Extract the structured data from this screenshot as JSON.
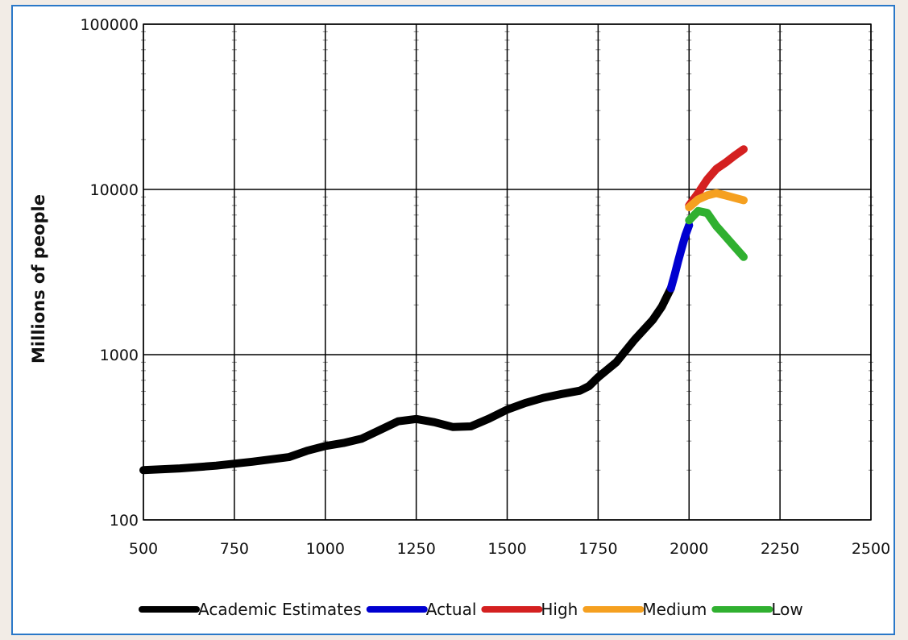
{
  "chart_data": {
    "type": "line",
    "title": "",
    "xlabel": "",
    "ylabel": "Millions of people",
    "xlim": [
      500,
      2500
    ],
    "ylim": [
      100,
      100000
    ],
    "yscale": "log",
    "grid": true,
    "legend_position": "bottom",
    "x_ticks": [
      500,
      750,
      1000,
      1250,
      1500,
      1750,
      2000,
      2250,
      2500
    ],
    "x_tick_labels": [
      "500",
      "750",
      "1000",
      "1250",
      "1500",
      "1750",
      "2000",
      "2250",
      "2500"
    ],
    "y_ticks": [
      100,
      1000,
      10000,
      100000
    ],
    "y_tick_labels": [
      "100",
      "1000",
      "10000",
      "100000"
    ],
    "series": [
      {
        "name": "Academic Estimates",
        "color": "#000000",
        "points": [
          [
            500,
            200
          ],
          [
            600,
            205
          ],
          [
            700,
            213
          ],
          [
            800,
            225
          ],
          [
            900,
            240
          ],
          [
            950,
            262
          ],
          [
            1000,
            280
          ],
          [
            1050,
            292
          ],
          [
            1100,
            310
          ],
          [
            1150,
            350
          ],
          [
            1200,
            395
          ],
          [
            1250,
            408
          ],
          [
            1300,
            390
          ],
          [
            1350,
            365
          ],
          [
            1400,
            368
          ],
          [
            1450,
            410
          ],
          [
            1500,
            465
          ],
          [
            1550,
            510
          ],
          [
            1600,
            548
          ],
          [
            1650,
            578
          ],
          [
            1700,
            605
          ],
          [
            1725,
            645
          ],
          [
            1750,
            730
          ],
          [
            1800,
            900
          ],
          [
            1850,
            1230
          ],
          [
            1900,
            1620
          ],
          [
            1925,
            1950
          ],
          [
            1950,
            2520
          ]
        ]
      },
      {
        "name": "Actual",
        "color": "#0000d0",
        "points": [
          [
            1950,
            2520
          ],
          [
            1960,
            3020
          ],
          [
            1970,
            3680
          ],
          [
            1980,
            4430
          ],
          [
            1990,
            5290
          ],
          [
            2000,
            6070
          ]
        ]
      },
      {
        "name": "High",
        "color": "#d42020",
        "points": [
          [
            2000,
            8000
          ],
          [
            2025,
            9500
          ],
          [
            2050,
            11500
          ],
          [
            2075,
            13300
          ],
          [
            2100,
            14500
          ],
          [
            2125,
            16000
          ],
          [
            2150,
            17500
          ]
        ]
      },
      {
        "name": "Medium",
        "color": "#f5a020",
        "points": [
          [
            2000,
            7800
          ],
          [
            2025,
            8700
          ],
          [
            2050,
            9200
          ],
          [
            2075,
            9500
          ],
          [
            2100,
            9200
          ],
          [
            2125,
            8900
          ],
          [
            2150,
            8600
          ]
        ]
      },
      {
        "name": "Low",
        "color": "#30b030",
        "points": [
          [
            2000,
            6500
          ],
          [
            2025,
            7400
          ],
          [
            2050,
            7200
          ],
          [
            2075,
            6000
          ],
          [
            2100,
            5200
          ],
          [
            2125,
            4500
          ],
          [
            2150,
            3900
          ]
        ]
      }
    ]
  }
}
